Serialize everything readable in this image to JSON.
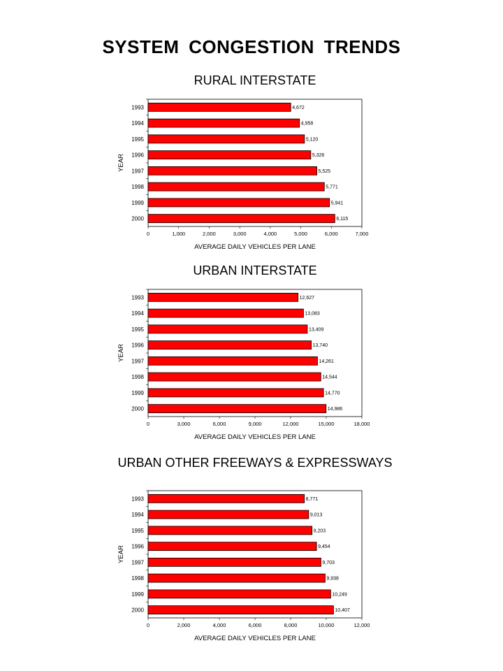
{
  "page_title": "SYSTEM  CONGESTION  TRENDS",
  "colors": {
    "bar_fill": "#ff0000",
    "bar_stroke": "#000000"
  },
  "chart_data": [
    {
      "type": "bar",
      "orientation": "horizontal",
      "title": "RURAL INTERSTATE",
      "xlabel": "AVERAGE DAILY VEHICLES PER LANE",
      "ylabel": "YEAR",
      "categories": [
        "1993",
        "1994",
        "1995",
        "1996",
        "1997",
        "1998",
        "1999",
        "2000"
      ],
      "values": [
        4672,
        4958,
        5120,
        5326,
        5525,
        5771,
        5941,
        6115
      ],
      "value_labels": [
        "4,672",
        "4,958",
        "5,120",
        "5,326",
        "5,525",
        "5,771",
        "5,941",
        "6,115"
      ],
      "xlim": [
        0,
        7000
      ],
      "xticks": [
        0,
        1000,
        2000,
        3000,
        4000,
        5000,
        6000,
        7000
      ],
      "xtick_labels": [
        "0",
        "1,000",
        "2,000",
        "3,000",
        "4,000",
        "5,000",
        "6,000",
        "7,000"
      ],
      "grid": false
    },
    {
      "type": "bar",
      "orientation": "horizontal",
      "title": "URBAN INTERSTATE",
      "xlabel": "AVERAGE DAILY VEHICLES PER LANE",
      "ylabel": "YEAR",
      "categories": [
        "1993",
        "1994",
        "1995",
        "1996",
        "1997",
        "1998",
        "1999",
        "2000"
      ],
      "values": [
        12627,
        13083,
        13409,
        13740,
        14261,
        14544,
        14770,
        14986
      ],
      "value_labels": [
        "12,627",
        "13,083",
        "13,409",
        "13,740",
        "14,261",
        "14,544",
        "14,770",
        "14,986"
      ],
      "xlim": [
        0,
        18000
      ],
      "xticks": [
        0,
        3000,
        6000,
        9000,
        12000,
        15000,
        18000
      ],
      "xtick_labels": [
        "0",
        "3,000",
        "6,000",
        "9,000",
        "12,000",
        "15,000",
        "18,000"
      ],
      "grid": false
    },
    {
      "type": "bar",
      "orientation": "horizontal",
      "title": "URBAN OTHER FREEWAYS & EXPRESSWAYS",
      "xlabel": "AVERAGE DAILY VEHICLES PER LANE",
      "ylabel": "YEAR",
      "categories": [
        "1993",
        "1994",
        "1995",
        "1996",
        "1997",
        "1998",
        "1999",
        "2000"
      ],
      "values": [
        8771,
        9013,
        9203,
        9454,
        9703,
        9938,
        10249,
        10407
      ],
      "value_labels": [
        "8,771",
        "9,013",
        "9,203",
        "9,454",
        "9,703",
        "9,938",
        "10,249",
        "10,407"
      ],
      "xlim": [
        0,
        12000
      ],
      "xticks": [
        0,
        2000,
        4000,
        6000,
        8000,
        10000,
        12000
      ],
      "xtick_labels": [
        "0",
        "2,000",
        "4,000",
        "6,000",
        "8,000",
        "10,000",
        "12,000"
      ],
      "grid": false
    }
  ]
}
